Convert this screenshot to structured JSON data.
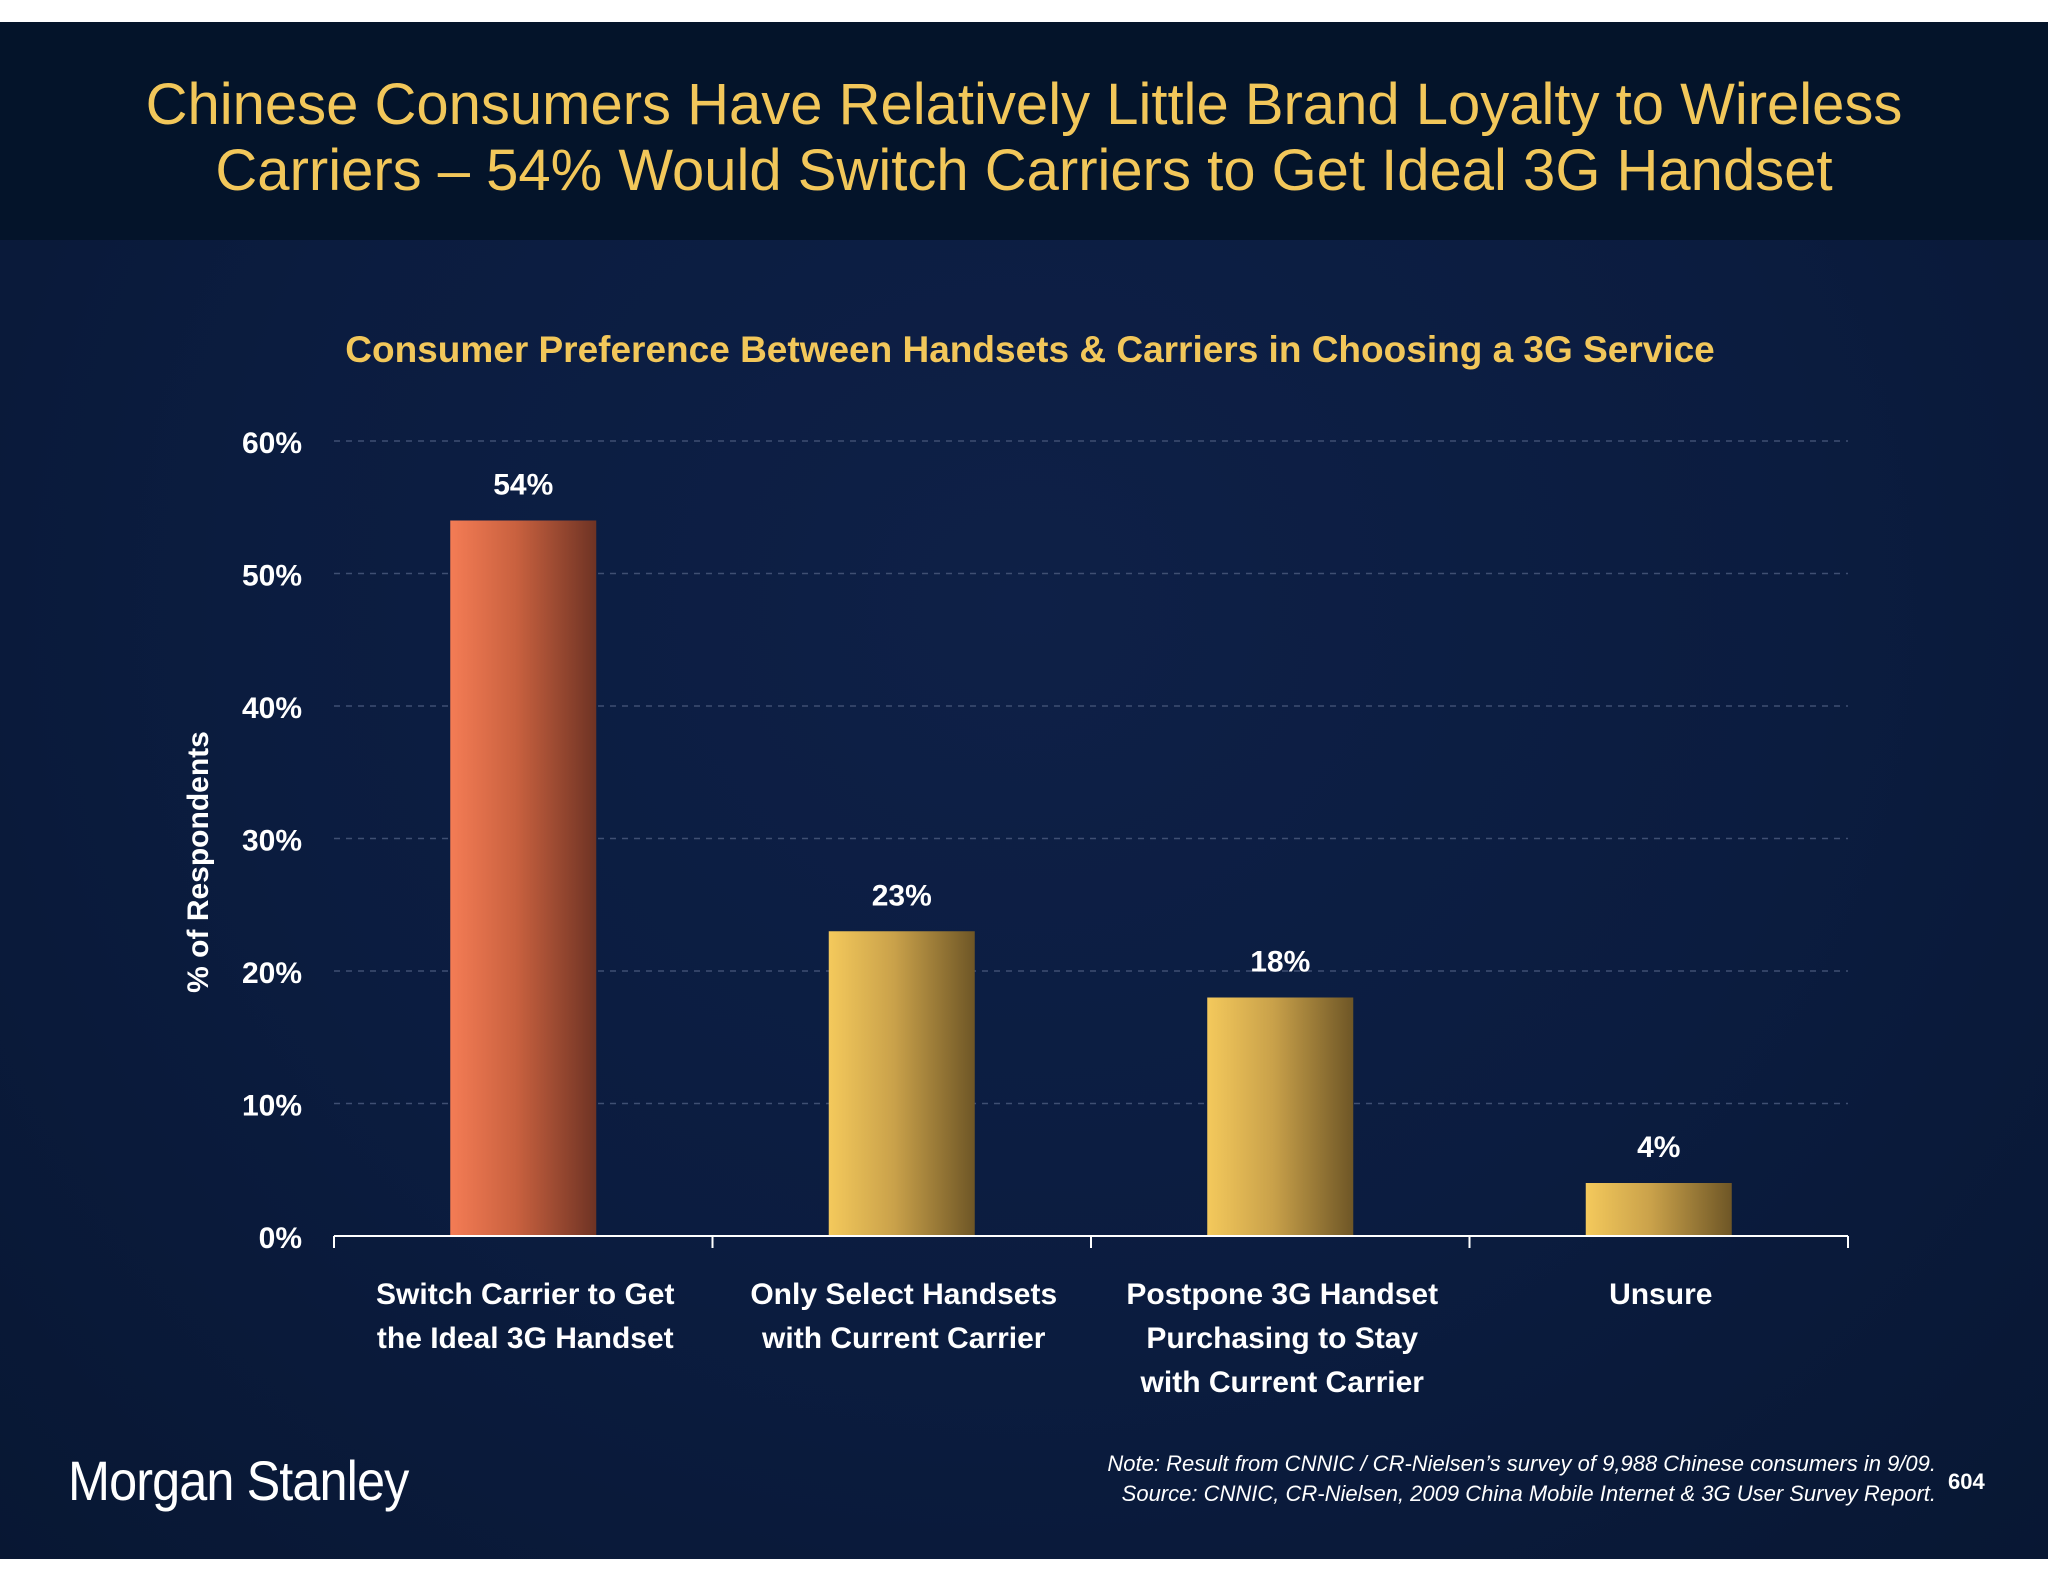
{
  "slide": {
    "title_line1": "Chinese Consumers Have Relatively Little Brand Loyalty to Wireless",
    "title_line2": "Carriers – 54% Would Switch Carriers to Get Ideal 3G Handset",
    "footnote_note": "Note: Result from CNNIC / CR-Nielsen’s survey of 9,988 Chinese consumers in 9/09.",
    "footnote_source": "Source: CNNIC, CR-Nielsen, 2009 China Mobile Internet & 3G User Survey Report.",
    "page_number": "604",
    "logo_text": "Morgan Stanley"
  },
  "colors": {
    "title": "#f2c75a",
    "background": "#0b1c3f",
    "bar_highlight": "#f07a52",
    "bar_default": "#f2c75a",
    "text": "#ffffff"
  },
  "chart_data": {
    "type": "bar",
    "title": "Consumer Preference Between Handsets & Carriers in Choosing a 3G Service",
    "xlabel": "",
    "ylabel": "% of Respondents",
    "ylim": [
      0,
      60
    ],
    "yticks": [
      0,
      10,
      20,
      30,
      40,
      50,
      60
    ],
    "ytick_labels": [
      "0%",
      "10%",
      "20%",
      "30%",
      "40%",
      "50%",
      "60%"
    ],
    "grid": true,
    "categories": [
      [
        "Switch Carrier to Get",
        "the Ideal 3G Handset"
      ],
      [
        "Only Select Handsets",
        "with Current Carrier"
      ],
      [
        "Postpone 3G Handset",
        "Purchasing to Stay",
        "with Current Carrier"
      ],
      [
        "Unsure"
      ]
    ],
    "values": [
      54,
      23,
      18,
      4
    ],
    "value_labels": [
      "54%",
      "23%",
      "18%",
      "4%"
    ],
    "highlight_index": 0
  }
}
